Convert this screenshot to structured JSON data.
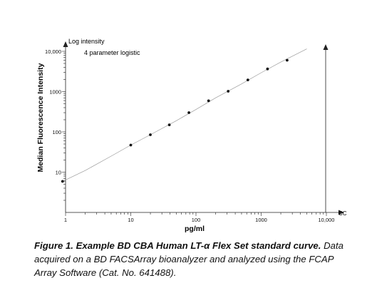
{
  "chart_data": {
    "type": "scatter",
    "xscale": "log",
    "yscale": "log",
    "xlim": [
      1,
      10000
    ],
    "ylim": [
      1,
      10000
    ],
    "x_ticks": [
      1,
      10,
      100,
      1000,
      10000
    ],
    "x_tick_labels": [
      "1",
      "10",
      "100",
      "1000",
      "10,000"
    ],
    "y_ticks": [
      10,
      100,
      1000,
      10000
    ],
    "y_tick_labels": [
      "10",
      "100",
      "1000",
      "10,000"
    ],
    "xlabel": "pg/ml",
    "ylabel": "Median Fluorescence Intensity",
    "y_axis_top_label": "Log intensity",
    "x_axis_end_label": "CC",
    "annotation": "4 parameter logistic",
    "grid": false,
    "series": [
      {
        "x": [
          0.9,
          10,
          20,
          39,
          78,
          156,
          312,
          625,
          1250,
          2500
        ],
        "y": [
          5.9,
          47,
          85,
          150,
          300,
          590,
          1020,
          1950,
          3650,
          6000
        ]
      }
    ],
    "fit_curve": {
      "x": [
        0.9,
        2,
        5,
        10,
        20,
        50,
        100,
        200,
        500,
        1000,
        2000,
        5000
      ],
      "y": [
        5.9,
        11,
        25,
        47,
        85,
        190,
        360,
        700,
        1550,
        2950,
        5400,
        11500
      ]
    }
  },
  "caption": {
    "bold": "Figure 1. Example BD CBA Human LT-α Flex Set standard curve.",
    "normal": " Data acquired on a BD FACSArray bioanalyzer and analyzed using the FCAP Array Software (Cat. No. 641488)."
  },
  "colors": {
    "axis": "#222222",
    "curve": "#9a9a9a",
    "point": "#111111"
  }
}
